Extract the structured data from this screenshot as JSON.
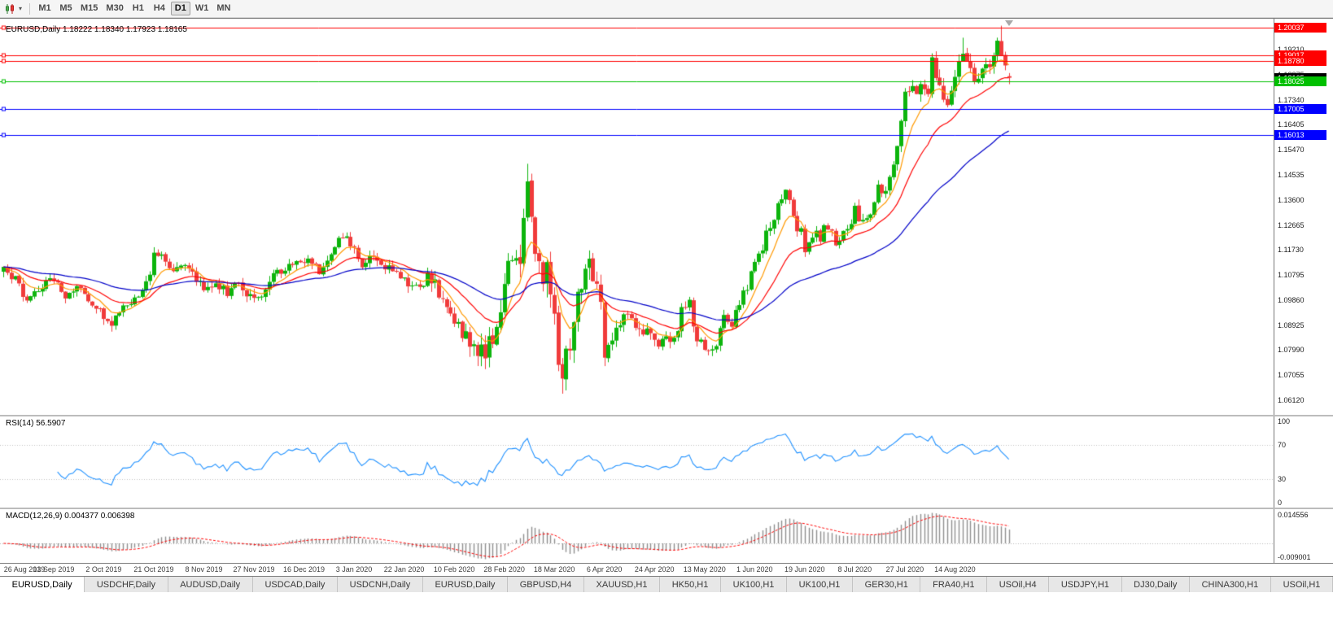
{
  "toolbar": {
    "caret": "▾",
    "timeframes": [
      "M1",
      "M5",
      "M15",
      "M30",
      "H1",
      "H4",
      "D1",
      "W1",
      "MN"
    ],
    "active_timeframe": "D1"
  },
  "chart": {
    "title": "EURUSD,Daily 1.18222 1.18340 1.17923 1.18165",
    "symbol": "EURUSD",
    "period": "Daily",
    "open": "1.18222",
    "high": "1.18340",
    "low": "1.17923",
    "close": "1.18165",
    "current_price_label": "1.18165",
    "price_range": {
      "top": 1.2037,
      "bottom": 1.0557
    },
    "axis_ticks": [
      "1.19210",
      "1.18275",
      "1.17340",
      "1.16405",
      "1.15470",
      "1.14535",
      "1.13600",
      "1.12665",
      "1.11730",
      "1.10795",
      "1.09860",
      "1.08925",
      "1.07990",
      "1.07055",
      "1.06120"
    ],
    "levels": [
      {
        "price": 1.20037,
        "label": "1.20037",
        "color": "#FF0000",
        "show_label": true
      },
      {
        "price": 1.19017,
        "label": "1.19017",
        "color": "#FF0000",
        "show_label": true
      },
      {
        "price": 1.1878,
        "label": "1.18780",
        "color": "#FF0000",
        "show_label": true
      },
      {
        "price": 1.18025,
        "label": "1.18025",
        "color": "#00C000",
        "show_label": true
      },
      {
        "price": 1.17005,
        "label": "1.17005",
        "color": "#0000FF",
        "show_label": true
      },
      {
        "price": 1.16013,
        "label": "1.16013",
        "color": "#0000FF",
        "show_label": true
      }
    ]
  },
  "rsi": {
    "title": "RSI(14) 56.5907",
    "value": "56.5907",
    "axis_labels": [
      "100",
      "70",
      "30",
      "0"
    ],
    "levels": [
      70,
      30
    ],
    "line_color": "#1E90FF"
  },
  "macd": {
    "title": "MACD(12,26,9) 0.004377 0.006398",
    "macd_value": "0.004377",
    "signal_value": "0.006398",
    "axis_top_label": "0.014556",
    "axis_bottom_label": "-0.009001",
    "histogram_color": "#8f8f8f",
    "signal_color": "#FF0000"
  },
  "date_axis": [
    "26 Aug 2019",
    "13 Sep 2019",
    "2 Oct 2019",
    "21 Oct 2019",
    "8 Nov 2019",
    "27 Nov 2019",
    "16 Dec 2019",
    "3 Jan 2020",
    "22 Jan 2020",
    "10 Feb 2020",
    "28 Feb 2020",
    "18 Mar 2020",
    "6 Apr 2020",
    "24 Apr 2020",
    "13 May 2020",
    "1 Jun 2020",
    "19 Jun 2020",
    "8 Jul 2020",
    "27 Jul 2020",
    "14 Aug 2020"
  ],
  "tabs": {
    "active_index": 0,
    "items": [
      "EURUSD,Daily",
      "USDCHF,Daily",
      "AUDUSD,Daily",
      "USDCAD,Daily",
      "USDCNH,Daily",
      "EURUSD,Daily",
      "GBPUSD,H4",
      "XAUUSD,H1",
      "HK50,H1",
      "UK100,H1",
      "UK100,H1",
      "GER30,H1",
      "FRA40,H1",
      "USOil,H4",
      "USDJPY,H1",
      "DJ30,Daily",
      "CHINA300,H1",
      "USOil,H1"
    ]
  },
  "chart_data": {
    "type": "candlestick",
    "symbol": "EURUSD",
    "timeframe": "Daily",
    "title": "EURUSD,Daily",
    "current_ohlc": {
      "open": 1.18222,
      "high": 1.1834,
      "low": 1.17923,
      "close": 1.18165
    },
    "y_axis_range": [
      1.0557,
      1.2037
    ],
    "n_candles": 262,
    "candle_up_color": "#0CB40C",
    "candle_down_color": "#F03B3B",
    "close_path_anchors": [
      [
        0,
        1.1095
      ],
      [
        3,
        1.106
      ],
      [
        6,
        1.099
      ],
      [
        9,
        1.103
      ],
      [
        13,
        1.107
      ],
      [
        16,
        1.1
      ],
      [
        19,
        1.104
      ],
      [
        23,
        1.097
      ],
      [
        26,
        1.093
      ],
      [
        28,
        1.09
      ],
      [
        31,
        1.096
      ],
      [
        34,
        1.1
      ],
      [
        37,
        1.104
      ],
      [
        39,
        1.115
      ],
      [
        41,
        1.115
      ],
      [
        44,
        1.11
      ],
      [
        47,
        1.113
      ],
      [
        50,
        1.107
      ],
      [
        52,
        1.102
      ],
      [
        55,
        1.105
      ],
      [
        58,
        1.101
      ],
      [
        61,
        1.106
      ],
      [
        63,
        1.101
      ],
      [
        65,
        1.1
      ],
      [
        67,
        1.101
      ],
      [
        70,
        1.108
      ],
      [
        73,
        1.111
      ],
      [
        76,
        1.113
      ],
      [
        78,
        1.114
      ],
      [
        80,
        1.112
      ],
      [
        82,
        1.109
      ],
      [
        84,
        1.112
      ],
      [
        86,
        1.118
      ],
      [
        88,
        1.123
      ],
      [
        89,
        1.121
      ],
      [
        91,
        1.117
      ],
      [
        93,
        1.112
      ],
      [
        95,
        1.116
      ],
      [
        97,
        1.114
      ],
      [
        100,
        1.11
      ],
      [
        102,
        1.109
      ],
      [
        104,
        1.108
      ],
      [
        106,
        1.102
      ],
      [
        108,
        1.103
      ],
      [
        110,
        1.109
      ],
      [
        112,
        1.105
      ],
      [
        114,
        1.098
      ],
      [
        117,
        1.091
      ],
      [
        119,
        1.087
      ],
      [
        121,
        1.084
      ],
      [
        123,
        1.079
      ],
      [
        125,
        1.08
      ],
      [
        127,
        1.085
      ],
      [
        128,
        1.089
      ],
      [
        130,
        1.103
      ],
      [
        131,
        1.113
      ],
      [
        133,
        1.117
      ],
      [
        134,
        1.114
      ],
      [
        136,
        1.145
      ],
      [
        137,
        1.128
      ],
      [
        138,
        1.118
      ],
      [
        140,
        1.106
      ],
      [
        141,
        1.111
      ],
      [
        143,
        1.091
      ],
      [
        144,
        1.072
      ],
      [
        145,
        1.069
      ],
      [
        146,
        1.077
      ],
      [
        147,
        1.082
      ],
      [
        149,
        1.103
      ],
      [
        151,
        1.109
      ],
      [
        152,
        1.113
      ],
      [
        154,
        1.103
      ],
      [
        155,
        1.095
      ],
      [
        156,
        1.079
      ],
      [
        158,
        1.085
      ],
      [
        160,
        1.087
      ],
      [
        161,
        1.091
      ],
      [
        163,
        1.093
      ],
      [
        164,
        1.087
      ],
      [
        166,
        1.086
      ],
      [
        168,
        1.088
      ],
      [
        169,
        1.082
      ],
      [
        171,
        1.083
      ],
      [
        173,
        1.084
      ],
      [
        175,
        1.087
      ],
      [
        176,
        1.095
      ],
      [
        178,
        1.098
      ],
      [
        179,
        1.09
      ],
      [
        180,
        1.083
      ],
      [
        182,
        1.0815
      ],
      [
        183,
        1.08
      ],
      [
        185,
        1.083
      ],
      [
        187,
        1.092
      ],
      [
        189,
        1.09
      ],
      [
        191,
        1.098
      ],
      [
        193,
        1.103
      ],
      [
        194,
        1.11
      ],
      [
        195,
        1.113
      ],
      [
        197,
        1.118
      ],
      [
        198,
        1.123
      ],
      [
        200,
        1.129
      ],
      [
        201,
        1.134
      ],
      [
        203,
        1.139
      ],
      [
        204,
        1.137
      ],
      [
        205,
        1.13
      ],
      [
        206,
        1.124
      ],
      [
        207,
        1.125
      ],
      [
        208,
        1.118
      ],
      [
        209,
        1.121
      ],
      [
        211,
        1.126
      ],
      [
        212,
        1.12
      ],
      [
        213,
        1.125
      ],
      [
        215,
        1.123
      ],
      [
        216,
        1.119
      ],
      [
        218,
        1.125
      ],
      [
        220,
        1.128
      ],
      [
        221,
        1.133
      ],
      [
        222,
        1.128
      ],
      [
        224,
        1.13
      ],
      [
        226,
        1.134
      ],
      [
        227,
        1.141
      ],
      [
        229,
        1.138
      ],
      [
        230,
        1.145
      ],
      [
        232,
        1.157
      ],
      [
        233,
        1.165
      ],
      [
        234,
        1.175
      ],
      [
        236,
        1.179
      ],
      [
        237,
        1.174
      ],
      [
        238,
        1.178
      ],
      [
        240,
        1.176
      ],
      [
        241,
        1.1875
      ],
      [
        242,
        1.182
      ],
      [
        244,
        1.174
      ],
      [
        245,
        1.171
      ],
      [
        246,
        1.179
      ],
      [
        247,
        1.184
      ],
      [
        249,
        1.193
      ],
      [
        250,
        1.186
      ],
      [
        252,
        1.18
      ],
      [
        254,
        1.183
      ],
      [
        256,
        1.186
      ],
      [
        257,
        1.19
      ],
      [
        258,
        1.1935
      ],
      [
        259,
        1.191
      ],
      [
        260,
        1.185
      ],
      [
        261,
        1.18165
      ]
    ],
    "volatility_anchors": [
      [
        0,
        1.0
      ],
      [
        100,
        1.0
      ],
      [
        115,
        1.6
      ],
      [
        130,
        2.2
      ],
      [
        150,
        2.4
      ],
      [
        158,
        1.5
      ],
      [
        180,
        1.0
      ],
      [
        230,
        1.1
      ],
      [
        248,
        1.5
      ],
      [
        261,
        1.3
      ]
    ],
    "wick_overrides": {
      "28": {
        "low": 1.0879
      },
      "123": {
        "low": 1.0778
      },
      "136": {
        "high": 1.1495
      },
      "145": {
        "low": 1.0636
      },
      "249": {
        "high": 1.1966
      },
      "259": {
        "high": 1.2011
      }
    },
    "moving_averages": [
      {
        "type": "ema",
        "period": 8,
        "color": "#FF9900"
      },
      {
        "type": "ema",
        "period": 21,
        "color": "#FF0000"
      },
      {
        "type": "ema",
        "period": 55,
        "color": "#0000C8"
      }
    ],
    "indicators": {
      "rsi": {
        "period": 14,
        "current": 56.5907
      },
      "macd": {
        "fast": 12,
        "slow": 26,
        "signal": 9,
        "current_macd": 0.004377,
        "current_signal": 0.006398
      }
    },
    "horizontal_levels": [
      1.20037,
      1.19017,
      1.1878,
      1.18025,
      1.17005,
      1.16013
    ],
    "x_gridline_dates": [
      "26 Aug 2019",
      "13 Sep 2019",
      "2 Oct 2019",
      "21 Oct 2019",
      "8 Nov 2019",
      "27 Nov 2019",
      "16 Dec 2019",
      "3 Jan 2020",
      "22 Jan 2020",
      "10 Feb 2020",
      "28 Feb 2020",
      "18 Mar 2020",
      "6 Apr 2020",
      "24 Apr 2020",
      "13 May 2020",
      "1 Jun 2020",
      "19 Jun 2020",
      "8 Jul 2020",
      "27 Jul 2020",
      "14 Aug 2020"
    ]
  }
}
